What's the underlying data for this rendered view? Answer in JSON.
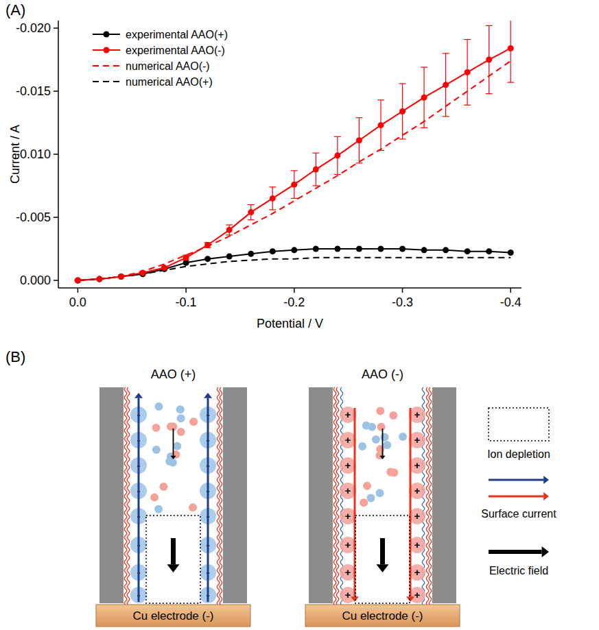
{
  "figure": {
    "panel_labels": [
      "(A)",
      "(B)"
    ]
  },
  "chart_data": {
    "type": "line",
    "x_label": "Potential / V",
    "y_label": "Current / A",
    "x": [
      0,
      -0.02,
      -0.04,
      -0.06,
      -0.08,
      -0.1,
      -0.12,
      -0.14,
      -0.16,
      -0.18,
      -0.2,
      -0.22,
      -0.24,
      -0.26,
      -0.28,
      -0.3,
      -0.32,
      -0.34,
      -0.36,
      -0.38,
      -0.4
    ],
    "xlim": [
      0.018,
      -0.41
    ],
    "ylim": [
      0.0006,
      -0.0206
    ],
    "xticks": [
      {
        "value": 0,
        "label": "0.0"
      },
      -0.1,
      -0.2,
      -0.3,
      -0.4
    ],
    "yticks": [
      {
        "value": 0,
        "label": "0.000"
      },
      -0.005,
      {
        "value": -0.01,
        "label": "-0.010"
      },
      -0.015,
      {
        "value": -0.02,
        "label": "-0.020"
      }
    ],
    "legend": "top-left",
    "series": [
      {
        "name": "experimental AAO(+)",
        "color": "#000000",
        "line_style": "solid",
        "marker": "circle",
        "values": [
          0,
          -0.0001,
          -0.0003,
          -0.0005,
          -0.0009,
          -0.0014,
          -0.0017,
          -0.0019,
          -0.0021,
          -0.0023,
          -0.0024,
          -0.0025,
          -0.0025,
          -0.0025,
          -0.0025,
          -0.0025,
          -0.0024,
          -0.0024,
          -0.0023,
          -0.0023,
          -0.0022
        ]
      },
      {
        "name": "experimental AAO(-)",
        "color": "#ff0000",
        "line_style": "solid",
        "marker": "circle",
        "values": [
          0,
          -0.0001,
          -0.0003,
          -0.0006,
          -0.001,
          -0.0018,
          -0.0028,
          -0.004,
          -0.0054,
          -0.0065,
          -0.0076,
          -0.0088,
          -0.0099,
          -0.0111,
          -0.0123,
          -0.0134,
          -0.0145,
          -0.0155,
          -0.0165,
          -0.0175,
          -0.0184
        ],
        "errors": [
          0,
          0,
          0,
          0.0001,
          0.0001,
          0.0002,
          0.0002,
          0.0004,
          0.0006,
          0.0009,
          0.0011,
          0.0013,
          0.0015,
          0.0018,
          0.002,
          0.0022,
          0.0024,
          0.0025,
          0.0026,
          0.0027,
          0.0027
        ]
      },
      {
        "name": "numerical AAO(-)",
        "color": "#ff0000",
        "line_style": "dashed",
        "marker": "none",
        "values": [
          0,
          -0.0001,
          -0.0003,
          -0.0007,
          -0.0013,
          -0.002,
          -0.0027,
          -0.0035,
          -0.0044,
          -0.0053,
          -0.0063,
          -0.0073,
          -0.0083,
          -0.0094,
          -0.0104,
          -0.0115,
          -0.0126,
          -0.0138,
          -0.015,
          -0.0162,
          -0.0174
        ]
      },
      {
        "name": "numerical AAO(+)",
        "color": "#000000",
        "line_style": "dashed",
        "marker": "none",
        "values": [
          0,
          -0.0001,
          -0.0003,
          -0.0005,
          -0.0008,
          -0.0011,
          -0.0013,
          -0.0015,
          -0.0016,
          -0.0017,
          -0.0017,
          -0.0018,
          -0.0018,
          -0.0018,
          -0.0018,
          -0.0018,
          -0.0018,
          -0.0018,
          -0.0018,
          -0.0018,
          -0.0018
        ]
      }
    ]
  },
  "diagram": {
    "panels": [
      {
        "title": "AAO (+)",
        "charge_sign": "-",
        "electrode": "Cu electrode (-)"
      },
      {
        "title": "AAO (-)",
        "charge_sign": "+",
        "electrode": "Cu electrode (-)"
      }
    ],
    "legend": [
      {
        "label": "Ion depletion"
      },
      {
        "label": "Surface current"
      },
      {
        "label": "Electric field"
      }
    ]
  }
}
